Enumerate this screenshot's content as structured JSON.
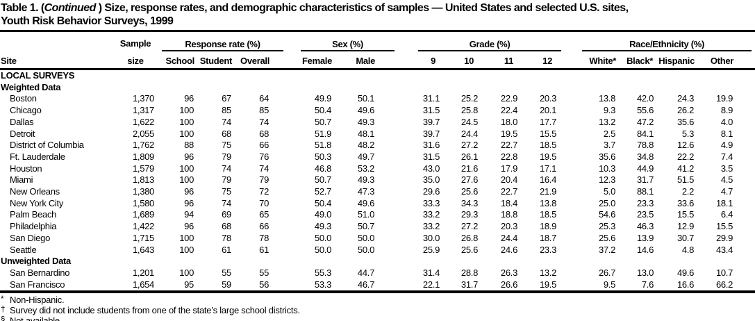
{
  "title": {
    "line1_pre": "Table 1. (",
    "line1_italic": "Continued",
    "line1_post": " ) Size, response rates, and demographic characteristics of samples — United States and selected U.S. sites,",
    "line2": "Youth Risk Behavior Surveys, 1999"
  },
  "header": {
    "site_label": "Site",
    "sample_top": "Sample",
    "sample_bottom": "size",
    "groups": [
      {
        "label": "Response rate (%)",
        "cols": [
          "School",
          "Student",
          "Overall"
        ]
      },
      {
        "label": "Sex (%)",
        "cols": [
          "Female",
          "Male"
        ]
      },
      {
        "label": "Grade (%)",
        "cols": [
          "9",
          "10",
          "11",
          "12"
        ]
      },
      {
        "label": "Race/Ethnicity (%)",
        "cols": [
          "White*",
          "Black*",
          "Hispanic",
          "Other"
        ]
      }
    ]
  },
  "table": {
    "section_heading": "LOCAL SURVEYS",
    "groups": [
      {
        "subheading": "Weighted Data",
        "rows": [
          {
            "site": "Boston",
            "values": [
              "1,370",
              "96",
              "67",
              "64",
              "49.9",
              "50.1",
              "31.1",
              "25.2",
              "22.9",
              "20.3",
              "13.8",
              "42.0",
              "24.3",
              "19.9"
            ]
          },
          {
            "site": "Chicago",
            "values": [
              "1,317",
              "100",
              "85",
              "85",
              "50.4",
              "49.6",
              "31.5",
              "25.8",
              "22.4",
              "20.1",
              "9.3",
              "55.6",
              "26.2",
              "8.9"
            ]
          },
          {
            "site": "Dallas",
            "values": [
              "1,622",
              "100",
              "74",
              "74",
              "50.7",
              "49.3",
              "39.7",
              "24.5",
              "18.0",
              "17.7",
              "13.2",
              "47.2",
              "35.6",
              "4.0"
            ]
          },
          {
            "site": "Detroit",
            "values": [
              "2,055",
              "100",
              "68",
              "68",
              "51.9",
              "48.1",
              "39.7",
              "24.4",
              "19.5",
              "15.5",
              "2.5",
              "84.1",
              "5.3",
              "8.1"
            ]
          },
          {
            "site": "District of Columbia",
            "values": [
              "1,762",
              "88",
              "75",
              "66",
              "51.8",
              "48.2",
              "31.6",
              "27.2",
              "22.7",
              "18.5",
              "3.7",
              "78.8",
              "12.6",
              "4.9"
            ]
          },
          {
            "site": "Ft. Lauderdale",
            "values": [
              "1,809",
              "96",
              "79",
              "76",
              "50.3",
              "49.7",
              "31.5",
              "26.1",
              "22.8",
              "19.5",
              "35.6",
              "34.8",
              "22.2",
              "7.4"
            ]
          },
          {
            "site": "Houston",
            "values": [
              "1,579",
              "100",
              "74",
              "74",
              "46.8",
              "53.2",
              "43.0",
              "21.6",
              "17.9",
              "17.1",
              "10.3",
              "44.9",
              "41.2",
              "3.5"
            ]
          },
          {
            "site": "Miami",
            "values": [
              "1,813",
              "100",
              "79",
              "79",
              "50.7",
              "49.3",
              "35.0",
              "27.6",
              "20.4",
              "16.4",
              "12.3",
              "31.7",
              "51.5",
              "4.5"
            ]
          },
          {
            "site": "New Orleans",
            "values": [
              "1,380",
              "96",
              "75",
              "72",
              "52.7",
              "47.3",
              "29.6",
              "25.6",
              "22.7",
              "21.9",
              "5.0",
              "88.1",
              "2.2",
              "4.7"
            ]
          },
          {
            "site": "New York City",
            "values": [
              "1,580",
              "96",
              "74",
              "70",
              "50.4",
              "49.6",
              "33.3",
              "34.3",
              "18.4",
              "13.8",
              "25.0",
              "23.3",
              "33.6",
              "18.1"
            ]
          },
          {
            "site": "Palm Beach",
            "values": [
              "1,689",
              "94",
              "69",
              "65",
              "49.0",
              "51.0",
              "33.2",
              "29.3",
              "18.8",
              "18.5",
              "54.6",
              "23.5",
              "15.5",
              "6.4"
            ]
          },
          {
            "site": "Philadelphia",
            "values": [
              "1,422",
              "96",
              "68",
              "66",
              "49.3",
              "50.7",
              "33.2",
              "27.2",
              "20.3",
              "18.9",
              "25.3",
              "46.3",
              "12.9",
              "15.5"
            ]
          },
          {
            "site": "San Diego",
            "values": [
              "1,715",
              "100",
              "78",
              "78",
              "50.0",
              "50.0",
              "30.0",
              "26.8",
              "24.4",
              "18.7",
              "25.6",
              "13.9",
              "30.7",
              "29.9"
            ]
          },
          {
            "site": "Seattle",
            "values": [
              "1,643",
              "100",
              "61",
              "61",
              "50.0",
              "50.0",
              "25.9",
              "25.6",
              "24.6",
              "23.3",
              "37.2",
              "14.6",
              "4.8",
              "43.4"
            ]
          }
        ]
      },
      {
        "subheading": "Unweighted Data",
        "rows": [
          {
            "site": "San Bernardino",
            "values": [
              "1,201",
              "100",
              "55",
              "55",
              "55.3",
              "44.7",
              "31.4",
              "28.8",
              "26.3",
              "13.2",
              "26.7",
              "13.0",
              "49.6",
              "10.7"
            ]
          },
          {
            "site": "San Francisco",
            "values": [
              "1,654",
              "95",
              "59",
              "56",
              "53.3",
              "46.7",
              "22.1",
              "31.7",
              "26.6",
              "19.5",
              "9.5",
              "7.6",
              "16.6",
              "66.2"
            ]
          }
        ]
      }
    ]
  },
  "footnotes": [
    {
      "symbol": "*",
      "text": "Non-Hispanic."
    },
    {
      "symbol": "†",
      "text": "Survey did not include students from one of the state’s large school districts."
    },
    {
      "symbol": "§",
      "text": "Not available."
    }
  ]
}
